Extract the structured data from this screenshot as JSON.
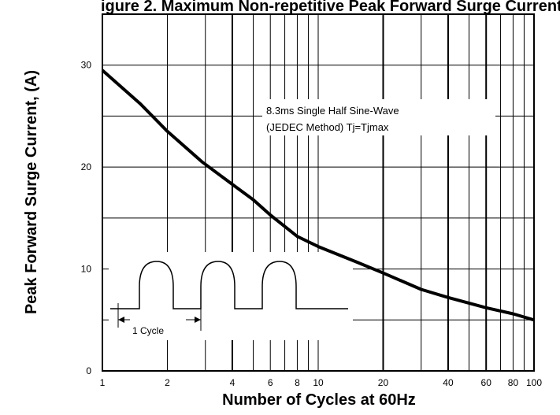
{
  "chart_data": {
    "type": "line",
    "title": "igure 2. Maximum Non-repetitive Peak Forward Surge Current",
    "xlabel": "Number of Cycles at 60Hz",
    "ylabel": "Peak Forward Surge Current, (A)",
    "x_scale": "log",
    "xlim": [
      1,
      100
    ],
    "ylim": [
      0,
      35
    ],
    "x_ticks": [
      "1",
      "2",
      "4",
      "6",
      "8",
      "10",
      "20",
      "40",
      "60",
      "80",
      "100"
    ],
    "y_ticks": [
      "0",
      "10",
      "20",
      "30"
    ],
    "grid": true,
    "annotation": [
      "8.3ms Single Half Sine-Wave",
      "(JEDEC Method)  Tj=Tjmax"
    ],
    "inset_label": "1 Cycle",
    "series": [
      {
        "x": [
          1,
          1.5,
          2,
          2.9,
          4,
          5,
          6,
          8,
          10,
          15,
          20,
          30,
          40,
          60,
          80,
          100
        ],
        "y": [
          29.5,
          26.2,
          23.5,
          20.5,
          18.3,
          16.8,
          15.3,
          13.2,
          12.2,
          10.7,
          9.6,
          8.0,
          7.2,
          6.2,
          5.6,
          5.0
        ]
      }
    ]
  }
}
